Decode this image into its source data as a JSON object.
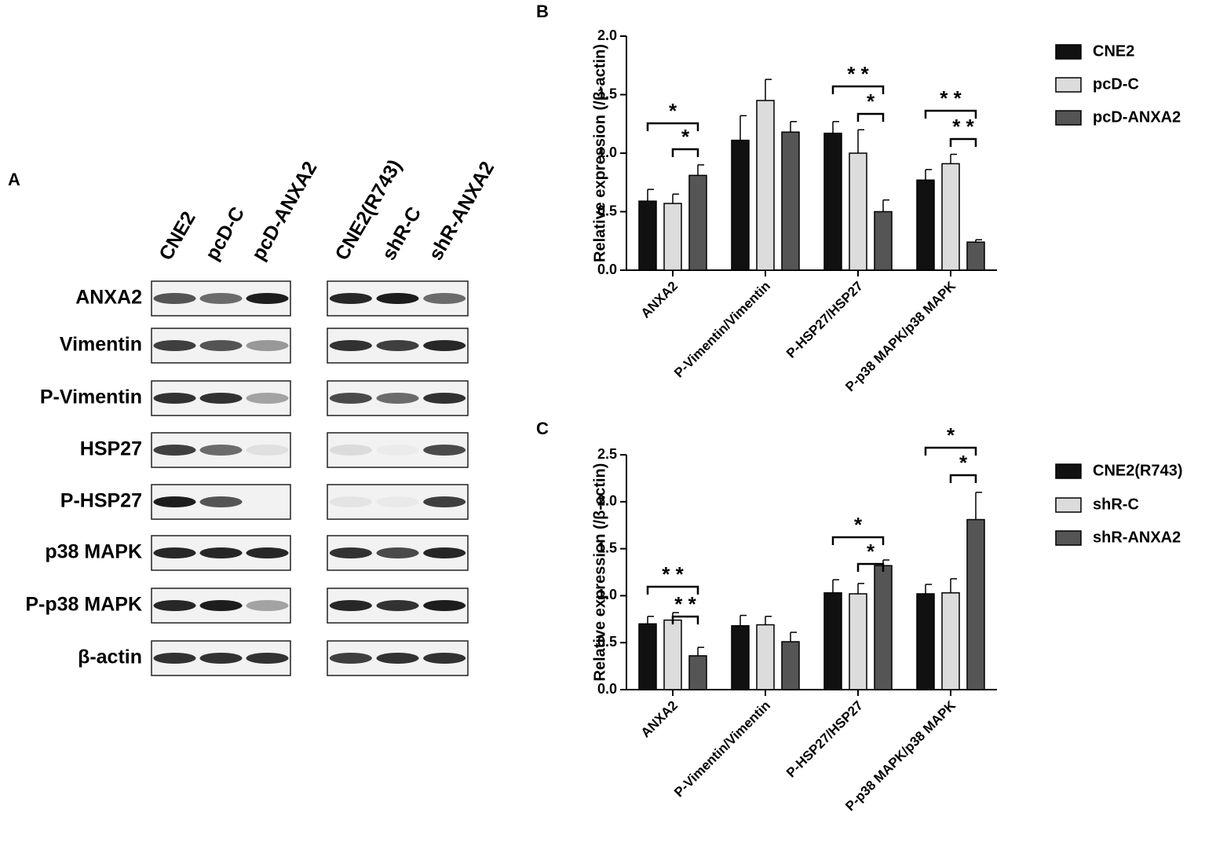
{
  "panel_labels": [
    "A",
    "B",
    "C"
  ],
  "blot": {
    "left_lanes": [
      "CNE2",
      "pcD-C",
      "pcD-ANXA2"
    ],
    "right_lanes": [
      "CNE2(R743)",
      "shR-C",
      "shR-ANXA2"
    ],
    "proteins": [
      "ANXA2",
      "Vimentin",
      "P-Vimentin",
      "HSP27",
      "P-HSP27",
      "p38 MAPK",
      "P-p38 MAPK",
      "β-actin"
    ]
  },
  "chart_data": [
    {
      "type": "bar",
      "y_label": "Relative expression (/β-actin)",
      "categories": [
        "ANXA2",
        "P-Vimentin/Vimentin",
        "P-HSP27/HSP27",
        "P-p38 MAPK/p38 MAPK"
      ],
      "series": [
        {
          "name": "CNE2",
          "color": "#111111",
          "values": [
            0.59,
            1.11,
            1.17,
            0.77
          ],
          "errors": [
            0.1,
            0.21,
            0.1,
            0.09
          ]
        },
        {
          "name": "pcD-C",
          "color": "#dcdcdc",
          "values": [
            0.57,
            1.45,
            1.0,
            0.91
          ],
          "errors": [
            0.08,
            0.18,
            0.2,
            0.08
          ]
        },
        {
          "name": "pcD-ANXA2",
          "color": "#555555",
          "values": [
            0.81,
            1.18,
            0.5,
            0.24
          ],
          "errors": [
            0.09,
            0.09,
            0.1,
            0.02
          ]
        }
      ],
      "ylim": [
        0,
        2
      ],
      "yticks": [
        {
          "value": 0,
          "label": "0.0"
        },
        {
          "value": 0.5,
          "label": "0.5"
        },
        {
          "value": 1,
          "label": "1.0"
        },
        {
          "value": 1.5,
          "label": "1.5"
        },
        {
          "value": 2,
          "label": "2.0"
        }
      ],
      "annotations": [
        "*",
        "*",
        "* *",
        "*",
        "* *",
        "* *"
      ]
    },
    {
      "type": "bar",
      "y_label": "Relative expression (/β-actin)",
      "categories": [
        "ANXA2",
        "P-Vimentin/Vimentin",
        "P-HSP27/HSP27",
        "P-p38 MAPK/p38 MAPK"
      ],
      "series": [
        {
          "name": "CNE2(R743)",
          "color": "#111111",
          "values": [
            0.7,
            0.68,
            1.03,
            1.02
          ],
          "errors": [
            0.08,
            0.11,
            0.14,
            0.1
          ]
        },
        {
          "name": "shR-C",
          "color": "#dcdcdc",
          "values": [
            0.74,
            0.69,
            1.02,
            1.03
          ],
          "errors": [
            0.08,
            0.09,
            0.11,
            0.15
          ]
        },
        {
          "name": "shR-ANXA2",
          "color": "#555555",
          "values": [
            0.36,
            0.51,
            1.32,
            1.81
          ],
          "errors": [
            0.09,
            0.1,
            0.06,
            0.29
          ]
        }
      ],
      "ylim": [
        0,
        2.5
      ],
      "yticks": [
        {
          "value": 0,
          "label": "0.0"
        },
        {
          "value": 0.5,
          "label": "0.5"
        },
        {
          "value": 1,
          "label": "1.0"
        },
        {
          "value": 1.5,
          "label": "1.5"
        },
        {
          "value": 2,
          "label": "2.0"
        },
        {
          "value": 2.5,
          "label": "2.5"
        }
      ],
      "annotations": [
        "* *",
        "* *",
        "*",
        "*",
        "*",
        "*"
      ]
    }
  ]
}
